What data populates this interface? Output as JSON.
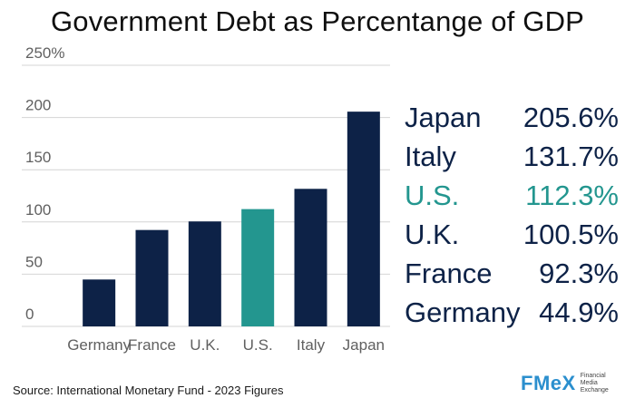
{
  "title": "Government Debt as Percentange of GDP",
  "source": "Source: International Monetary Fund - 2023 Figures",
  "brand": {
    "name": "FMeX",
    "tagline": [
      "Financial",
      "Media",
      "Exchange"
    ]
  },
  "colors": {
    "bar": "#0d2247",
    "highlight": "#23968f",
    "grid": "#d4d4d4",
    "brand": "#2b8fce"
  },
  "chart_data": {
    "type": "bar",
    "title": "Government Debt as Percentange of GDP",
    "categories": [
      "Germany",
      "France",
      "U.K.",
      "U.S.",
      "Italy",
      "Japan"
    ],
    "values": [
      44.9,
      92.3,
      100.5,
      112.3,
      131.7,
      205.6
    ],
    "highlight": "U.S.",
    "ylim": [
      0,
      250
    ],
    "yticks": [
      0,
      50,
      100,
      150,
      200,
      250
    ],
    "ytick_labels": [
      "0",
      "50",
      "100",
      "150",
      "200",
      "250%"
    ],
    "grid": true
  },
  "legend": [
    {
      "country": "Japan",
      "value": "205.6%",
      "highlight": false
    },
    {
      "country": "Italy",
      "value": "131.7%",
      "highlight": false
    },
    {
      "country": "U.S.",
      "value": "112.3%",
      "highlight": true
    },
    {
      "country": "U.K.",
      "value": "100.5%",
      "highlight": false
    },
    {
      "country": "France",
      "value": "92.3%",
      "highlight": false
    },
    {
      "country": "Germany",
      "value": "44.9%",
      "highlight": false
    }
  ]
}
